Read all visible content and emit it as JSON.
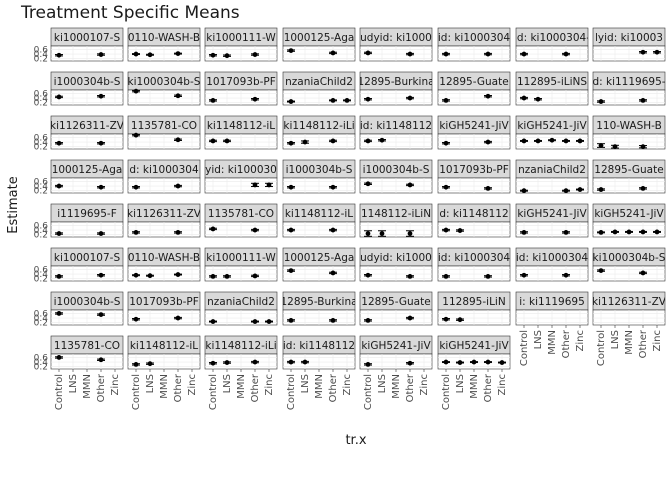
{
  "chart_data": {
    "type": "scatter",
    "title": "Treatment Specific Means",
    "xlabel": "tr.x",
    "ylabel": "Estimate",
    "x": [
      "Control",
      "LNS",
      "MMN",
      "Other",
      "Zinc"
    ],
    "y_ticks": [
      "0.6",
      "0.4",
      "0.2"
    ],
    "ylim": [
      0.1,
      0.75
    ],
    "grid": true,
    "facets": [
      {
        "label": "ki1000107-S",
        "y": [
          0.35,
          null,
          null,
          0.38,
          null
        ],
        "err": [
          0.03,
          null,
          null,
          0.03,
          null
        ]
      },
      {
        "label": "0110-WASH-B",
        "y": [
          0.4,
          0.37,
          null,
          0.42,
          null
        ],
        "err": [
          0.02,
          0.02,
          null,
          0.02,
          null
        ]
      },
      {
        "label": "ki1000111-W",
        "y": [
          0.35,
          0.33,
          null,
          0.38,
          null
        ],
        "err": [
          0.03,
          0.03,
          null,
          0.03,
          null
        ]
      },
      {
        "label": "1000125-Aga",
        "y": [
          0.55,
          null,
          null,
          0.45,
          null
        ],
        "err": [
          0.03,
          null,
          null,
          0.03,
          null
        ]
      },
      {
        "label": "udyid: ki1000",
        "y": [
          0.45,
          null,
          null,
          0.4,
          null
        ],
        "err": [
          0.03,
          null,
          null,
          0.03,
          null
        ]
      },
      {
        "label": "id: ki1000304",
        "y": [
          0.4,
          null,
          null,
          0.4,
          null
        ],
        "err": [
          0.03,
          null,
          null,
          0.03,
          null
        ]
      },
      {
        "label": "id: ki1000304-",
        "y": [
          0.4,
          null,
          null,
          0.4,
          null
        ],
        "err": [
          0.03,
          null,
          null,
          0.03,
          null
        ]
      },
      {
        "label": "lyid: ki10003",
        "y": [
          null,
          null,
          null,
          0.48,
          0.48
        ],
        "err": [
          null,
          null,
          null,
          0.03,
          0.03
        ]
      },
      {
        "label": "i1000304b-S",
        "y": [
          0.45,
          null,
          null,
          0.48,
          null
        ],
        "err": [
          0.03,
          null,
          null,
          0.03,
          null
        ]
      },
      {
        "label": "ki1000304b-S",
        "y": [
          0.7,
          null,
          null,
          0.5,
          null
        ],
        "err": [
          0.03,
          null,
          null,
          0.03,
          null
        ]
      },
      {
        "label": "1017093b-PF",
        "y": [
          0.3,
          null,
          null,
          0.35,
          null
        ],
        "err": [
          0.03,
          null,
          null,
          0.03,
          null
        ]
      },
      {
        "label": "nzaniaChild2",
        "y": [
          0.25,
          null,
          null,
          0.3,
          0.3
        ],
        "err": [
          0.02,
          null,
          null,
          0.02,
          0.02
        ]
      },
      {
        "label": "12895-Burkina",
        "y": [
          0.35,
          null,
          null,
          0.4,
          null
        ],
        "err": [
          0.03,
          null,
          null,
          0.03,
          null
        ]
      },
      {
        "label": "12895-Guate",
        "y": [
          0.3,
          null,
          null,
          0.48,
          null
        ],
        "err": [
          0.03,
          null,
          null,
          0.03,
          null
        ]
      },
      {
        "label": "112895-iLiNS",
        "y": [
          0.4,
          0.35,
          null,
          null,
          null
        ],
        "err": [
          0.03,
          0.03,
          null,
          null,
          null
        ]
      },
      {
        "label": "d: ki1119695-",
        "y": [
          0.25,
          null,
          null,
          0.3,
          null
        ],
        "err": [
          0.03,
          null,
          null,
          0.03,
          null
        ]
      },
      {
        "label": "ki1126311-ZV",
        "y": [
          0.35,
          null,
          null,
          0.35,
          null
        ],
        "err": [
          0.03,
          null,
          null,
          0.03,
          null
        ]
      },
      {
        "label": "1135781-CO",
        "y": [
          0.7,
          null,
          null,
          0.5,
          null
        ],
        "err": [
          0.03,
          null,
          null,
          0.03,
          null
        ]
      },
      {
        "label": "ki1148112-iL",
        "y": [
          0.45,
          0.45,
          null,
          null,
          null
        ],
        "err": [
          0.03,
          0.03,
          null,
          null,
          null
        ]
      },
      {
        "label": "ki1148112-iLi",
        "y": [
          0.35,
          0.4,
          null,
          0.45,
          null
        ],
        "err": [
          0.03,
          0.05,
          null,
          0.03,
          null
        ]
      },
      {
        "label": "id: ki1148112",
        "y": [
          0.45,
          0.48,
          null,
          null,
          null
        ],
        "err": [
          0.03,
          0.03,
          null,
          null,
          null
        ]
      },
      {
        "label": "kiGH5241-JiV",
        "y": [
          0.35,
          null,
          null,
          0.4,
          null
        ],
        "err": [
          0.03,
          null,
          null,
          0.03,
          null
        ]
      },
      {
        "label": "kiGH5241-JiV",
        "y": [
          0.45,
          0.45,
          0.48,
          0.45,
          0.45
        ],
        "err": [
          0.02,
          0.02,
          0.02,
          0.02,
          0.02
        ]
      },
      {
        "label": "110-WASH-B",
        "y": [
          0.25,
          0.2,
          null,
          0.2,
          null
        ],
        "err": [
          0.08,
          0.06,
          null,
          0.05,
          null
        ]
      },
      {
        "label": "1000125-Aga",
        "y": [
          0.4,
          null,
          null,
          0.35,
          null
        ],
        "err": [
          0.03,
          null,
          null,
          0.03,
          null
        ]
      },
      {
        "label": "d: ki1000304",
        "y": [
          0.35,
          null,
          null,
          0.4,
          null
        ],
        "err": [
          0.03,
          null,
          null,
          0.03,
          null
        ]
      },
      {
        "label": "yid: ki100030",
        "y": [
          null,
          null,
          null,
          0.45,
          0.45
        ],
        "err": [
          null,
          null,
          null,
          0.07,
          0.07
        ]
      },
      {
        "label": "i1000304b-S",
        "y": [
          0.35,
          null,
          null,
          0.35,
          null
        ],
        "err": [
          0.03,
          null,
          null,
          0.03,
          null
        ]
      },
      {
        "label": "i1000304b-S",
        "y": [
          0.5,
          null,
          null,
          0.45,
          null
        ],
        "err": [
          0.03,
          null,
          null,
          0.03,
          null
        ]
      },
      {
        "label": "1017093b-PF",
        "y": [
          0.35,
          null,
          null,
          0.3,
          null
        ],
        "err": [
          0.03,
          null,
          null,
          0.03,
          null
        ]
      },
      {
        "label": "nzaniaChild2",
        "y": [
          0.2,
          null,
          null,
          0.2,
          0.25
        ],
        "err": [
          0.02,
          null,
          null,
          0.02,
          0.02
        ]
      },
      {
        "label": "12895-Guate",
        "y": [
          0.25,
          null,
          null,
          0.3,
          null
        ],
        "err": [
          0.03,
          null,
          null,
          0.03,
          null
        ]
      },
      {
        "label": "i1119695-F",
        "y": [
          0.25,
          null,
          null,
          0.25,
          null
        ],
        "err": [
          0.03,
          null,
          null,
          0.03,
          null
        ]
      },
      {
        "label": "ki1126311-ZV",
        "y": [
          0.3,
          null,
          null,
          0.3,
          null
        ],
        "err": [
          0.03,
          null,
          null,
          0.03,
          null
        ]
      },
      {
        "label": "1135781-CO",
        "y": [
          0.45,
          null,
          null,
          0.4,
          null
        ],
        "err": [
          0.03,
          null,
          null,
          0.03,
          null
        ]
      },
      {
        "label": "ki1148112-iL",
        "y": [
          0.4,
          null,
          null,
          0.4,
          null
        ],
        "err": [
          0.03,
          null,
          null,
          0.03,
          null
        ]
      },
      {
        "label": "1148112-iLiN",
        "y": [
          0.25,
          0.25,
          null,
          0.25,
          null
        ],
        "err": [
          0.12,
          0.12,
          null,
          0.12,
          null
        ]
      },
      {
        "label": "d: ki1148112",
        "y": [
          0.4,
          0.38,
          null,
          null,
          null
        ],
        "err": [
          0.03,
          0.03,
          null,
          null,
          null
        ]
      },
      {
        "label": "kiGH5241-JiV",
        "y": [
          0.3,
          null,
          null,
          0.3,
          null
        ],
        "err": [
          0.03,
          null,
          null,
          0.03,
          null
        ]
      },
      {
        "label": "kiGH5241-JiV",
        "y": [
          0.3,
          0.32,
          0.32,
          0.32,
          0.32
        ],
        "err": [
          0.02,
          0.02,
          0.02,
          0.02,
          0.02
        ]
      },
      {
        "label": "ki1000107-S",
        "y": [
          0.3,
          null,
          null,
          0.35,
          null
        ],
        "err": [
          0.03,
          null,
          null,
          0.03,
          null
        ]
      },
      {
        "label": "0110-WASH-B",
        "y": [
          0.35,
          0.33,
          null,
          0.38,
          null
        ],
        "err": [
          0.02,
          0.02,
          null,
          0.02,
          null
        ]
      },
      {
        "label": "ki1000111-W",
        "y": [
          0.3,
          0.3,
          null,
          0.32,
          null
        ],
        "err": [
          0.03,
          0.03,
          null,
          0.03,
          null
        ]
      },
      {
        "label": "1000125-Aga",
        "y": [
          0.55,
          null,
          null,
          0.45,
          null
        ],
        "err": [
          0.03,
          null,
          null,
          0.03,
          null
        ]
      },
      {
        "label": "udyid: ki1000",
        "y": [
          0.35,
          null,
          null,
          0.3,
          null
        ],
        "err": [
          0.03,
          null,
          null,
          0.03,
          null
        ]
      },
      {
        "label": "id: ki1000304",
        "y": [
          0.3,
          null,
          null,
          0.3,
          null
        ],
        "err": [
          0.03,
          null,
          null,
          0.03,
          null
        ]
      },
      {
        "label": "id: ki1000304",
        "y": [
          0.35,
          null,
          null,
          0.35,
          null
        ],
        "err": [
          0.03,
          null,
          null,
          0.03,
          null
        ]
      },
      {
        "label": "ki1000304b-S",
        "y": [
          0.55,
          null,
          null,
          0.45,
          null
        ],
        "err": [
          0.03,
          null,
          null,
          0.03,
          null
        ]
      },
      {
        "label": "i1000304b-S",
        "y": [
          0.6,
          null,
          null,
          0.55,
          null
        ],
        "err": [
          0.03,
          null,
          null,
          0.03,
          null
        ]
      },
      {
        "label": "1017093b-PF",
        "y": [
          0.35,
          null,
          null,
          0.4,
          null
        ],
        "err": [
          0.03,
          null,
          null,
          0.03,
          null
        ]
      },
      {
        "label": "nzaniaChild2",
        "y": [
          0.25,
          null,
          null,
          0.25,
          0.25
        ],
        "err": [
          0.02,
          null,
          null,
          0.02,
          0.02
        ]
      },
      {
        "label": "12895-Burkina",
        "y": [
          0.3,
          null,
          null,
          0.3,
          null
        ],
        "err": [
          0.03,
          null,
          null,
          0.03,
          null
        ]
      },
      {
        "label": "12895-Guate",
        "y": [
          0.3,
          null,
          null,
          0.4,
          null
        ],
        "err": [
          0.03,
          null,
          null,
          0.03,
          null
        ]
      },
      {
        "label": "112895-iLiN",
        "y": [
          0.35,
          0.33,
          null,
          null,
          null
        ],
        "err": [
          0.03,
          0.03,
          null,
          null,
          null
        ]
      },
      {
        "label": "i: ki1119695",
        "y": [],
        "err": []
      },
      {
        "label": "ki1126311-ZV",
        "y": [],
        "err": []
      },
      {
        "label": "1135781-CO",
        "y": [
          0.6,
          null,
          null,
          0.5,
          null
        ],
        "err": [
          0.03,
          null,
          null,
          0.03,
          null
        ]
      },
      {
        "label": "ki1148112-iL",
        "y": [
          0.3,
          0.33,
          null,
          null,
          null
        ],
        "err": [
          0.03,
          0.03,
          null,
          null,
          null
        ]
      },
      {
        "label": "ki1148112-iLi",
        "y": [
          0.35,
          0.38,
          null,
          0.4,
          null
        ],
        "err": [
          0.03,
          0.03,
          null,
          0.03,
          null
        ]
      },
      {
        "label": "id: ki1148112",
        "y": [
          0.4,
          0.4,
          null,
          null,
          null
        ],
        "err": [
          0.03,
          0.03,
          null,
          null,
          null
        ]
      },
      {
        "label": "kiGH5241-JiV",
        "y": [
          0.3,
          null,
          null,
          0.35,
          null
        ],
        "err": [
          0.03,
          null,
          null,
          0.03,
          null
        ]
      },
      {
        "label": "kiGH5241-JiV",
        "y": [
          0.4,
          0.38,
          0.4,
          0.4,
          0.38
        ],
        "err": [
          0.02,
          0.02,
          0.02,
          0.02,
          0.02
        ]
      }
    ]
  }
}
